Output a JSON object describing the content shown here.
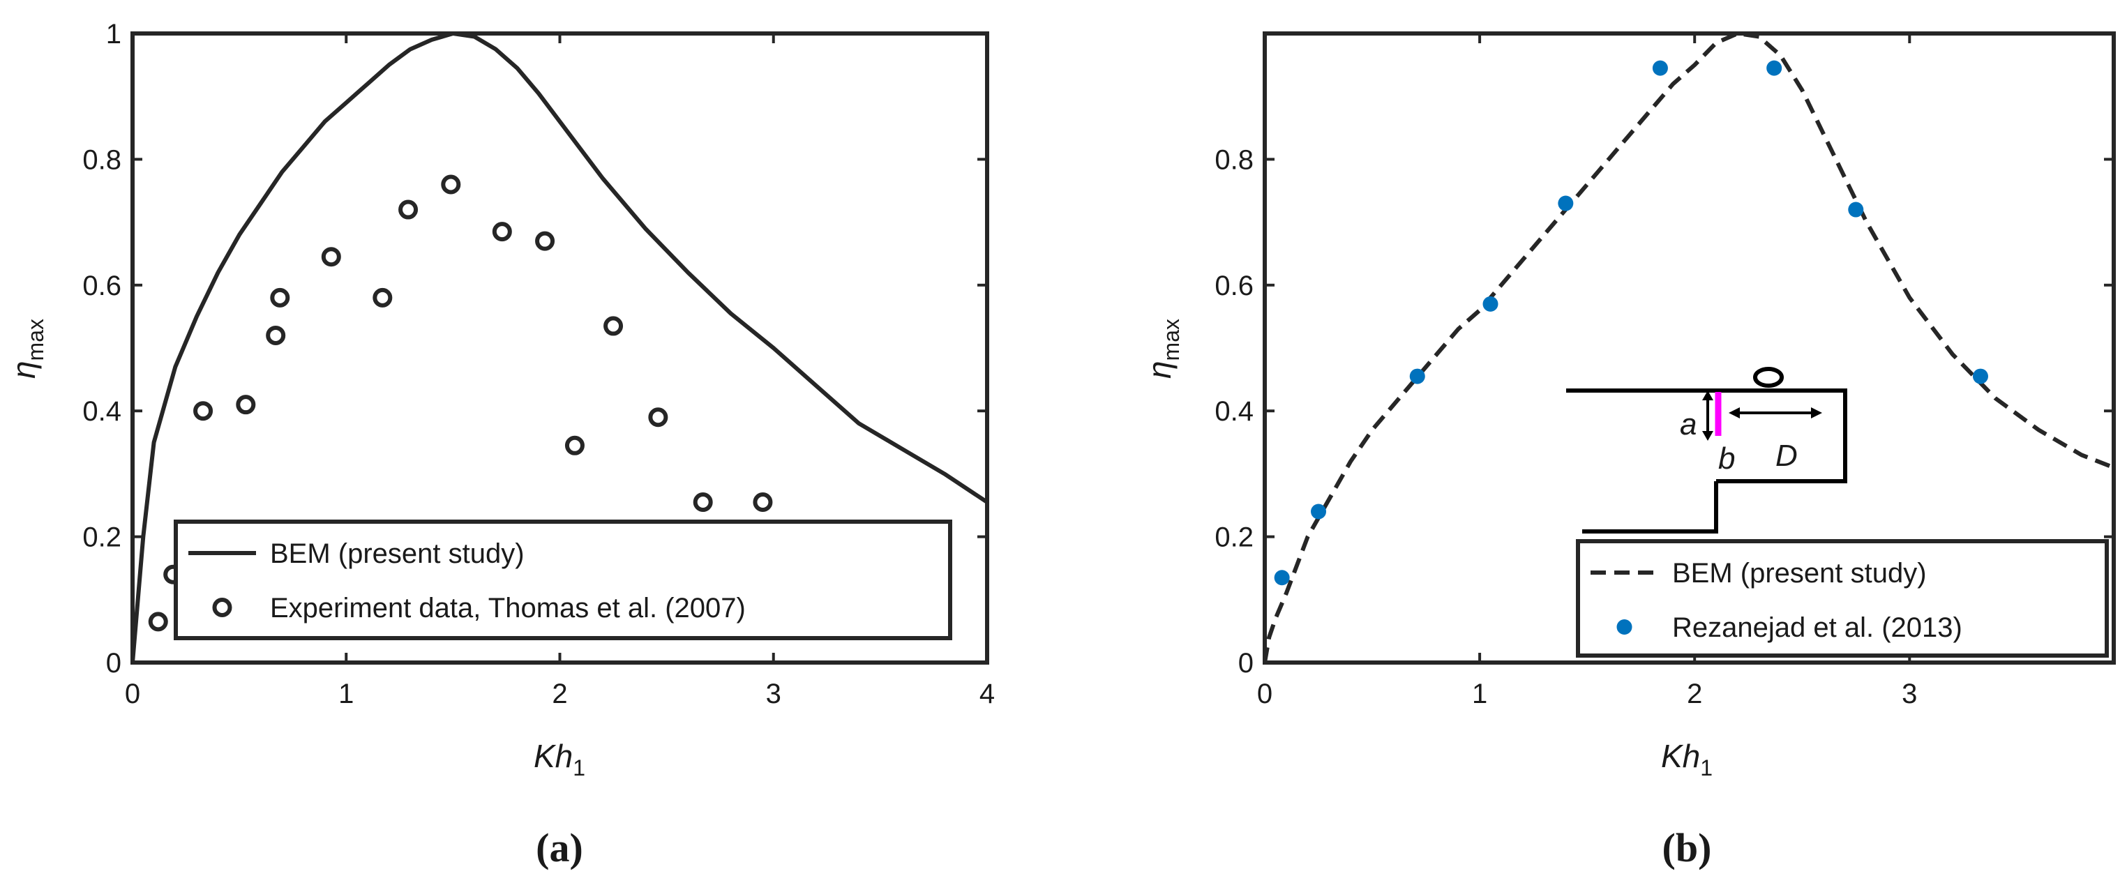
{
  "colors": {
    "axes": "#262626",
    "bem_line": "#262626",
    "rez_points": "#0072BD",
    "magenta": "#FF00FF"
  },
  "chart_data": [
    {
      "type": "line",
      "panel_label": "(a)",
      "xlabel": "Kh",
      "xlabel_sub": "1",
      "ylabel": "η",
      "ylabel_sub": "max",
      "xlim": [
        0,
        4
      ],
      "ylim": [
        0,
        1
      ],
      "xticks": [
        "0",
        "1",
        "2",
        "3",
        "4"
      ],
      "yticks": [
        "0",
        "0.2",
        "0.4",
        "0.6",
        "0.8",
        "1"
      ],
      "legend_position": "bottom-right",
      "series": [
        {
          "name": "BEM (present study)",
          "style": "solid",
          "x": [
            0.0,
            0.05,
            0.1,
            0.2,
            0.3,
            0.4,
            0.5,
            0.6,
            0.7,
            0.8,
            0.9,
            1.0,
            1.1,
            1.2,
            1.3,
            1.4,
            1.5,
            1.6,
            1.7,
            1.8,
            1.9,
            2.0,
            2.2,
            2.4,
            2.6,
            2.8,
            3.0,
            3.2,
            3.4,
            3.6,
            3.8,
            4.0
          ],
          "y": [
            0.0,
            0.2,
            0.35,
            0.47,
            0.55,
            0.62,
            0.68,
            0.73,
            0.78,
            0.82,
            0.86,
            0.89,
            0.92,
            0.95,
            0.975,
            0.99,
            1.0,
            0.995,
            0.975,
            0.945,
            0.905,
            0.86,
            0.77,
            0.69,
            0.62,
            0.555,
            0.5,
            0.44,
            0.38,
            0.34,
            0.3,
            0.255
          ]
        },
        {
          "name": "Experiment data, Thomas et al. (2007)",
          "style": "open-circle",
          "x": [
            0.12,
            0.19,
            0.33,
            0.53,
            0.67,
            0.69,
            0.93,
            1.17,
            1.29,
            1.49,
            1.73,
            1.93,
            2.07,
            2.25,
            2.46,
            2.67,
            2.95
          ],
          "y": [
            0.065,
            0.14,
            0.4,
            0.41,
            0.52,
            0.58,
            0.645,
            0.58,
            0.72,
            0.76,
            0.685,
            0.67,
            0.345,
            0.535,
            0.39,
            0.255,
            0.255
          ]
        }
      ]
    },
    {
      "type": "line",
      "panel_label": "(b)",
      "xlabel": "Kh",
      "xlabel_sub": "1",
      "ylabel": "η",
      "ylabel_sub": "max",
      "xlim": [
        0,
        3.95
      ],
      "ylim": [
        0,
        1
      ],
      "xticks": [
        "0",
        "1",
        "2",
        "3"
      ],
      "yticks": [
        "0",
        "0.2",
        "0.4",
        "0.6",
        "0.8"
      ],
      "legend_position": "bottom-right",
      "inset_labels": {
        "a": "a",
        "b": "b",
        "D": "D"
      },
      "series": [
        {
          "name": "BEM (present study)",
          "style": "dashed",
          "x": [
            0.0,
            0.02,
            0.05,
            0.1,
            0.2,
            0.3,
            0.4,
            0.5,
            0.6,
            0.7,
            0.8,
            0.9,
            1.0,
            1.1,
            1.2,
            1.3,
            1.4,
            1.5,
            1.6,
            1.7,
            1.8,
            1.9,
            2.0,
            2.1,
            2.2,
            2.3,
            2.4,
            2.5,
            2.6,
            2.7,
            2.8,
            2.9,
            3.0,
            3.2,
            3.4,
            3.6,
            3.8,
            3.95
          ],
          "y": [
            0.0,
            0.04,
            0.07,
            0.11,
            0.2,
            0.26,
            0.32,
            0.37,
            0.41,
            0.45,
            0.49,
            0.53,
            0.56,
            0.6,
            0.64,
            0.68,
            0.72,
            0.76,
            0.8,
            0.84,
            0.88,
            0.92,
            0.95,
            0.985,
            1.0,
            0.995,
            0.965,
            0.91,
            0.84,
            0.77,
            0.7,
            0.64,
            0.58,
            0.49,
            0.42,
            0.37,
            0.33,
            0.31
          ]
        },
        {
          "name": "Rezanejad et al. (2013)",
          "style": "filled-dot",
          "x": [
            0.08,
            0.25,
            0.71,
            1.05,
            1.4,
            1.84,
            2.37,
            2.75,
            3.33
          ],
          "y": [
            0.135,
            0.24,
            0.455,
            0.57,
            0.73,
            0.945,
            0.945,
            0.72,
            0.455
          ]
        }
      ]
    }
  ]
}
